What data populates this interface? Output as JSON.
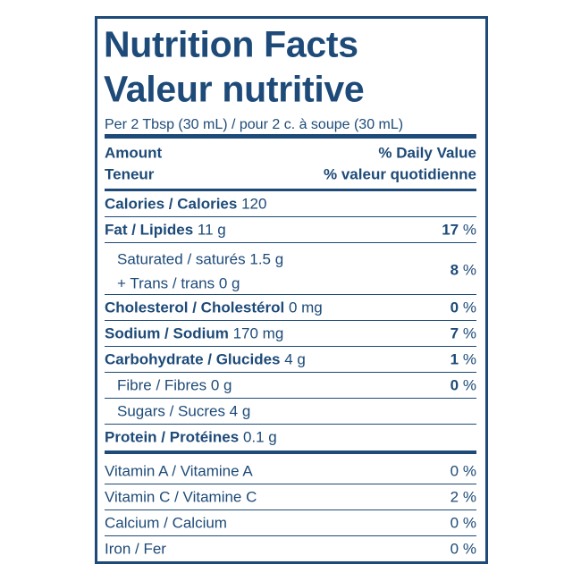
{
  "header": {
    "title_en": "Nutrition Facts",
    "title_fr": "Valeur nutritive",
    "serving": "Per 2 Tbsp (30 mL) / pour 2 c. à soupe (30 mL)"
  },
  "columns": {
    "amount_en": "Amount",
    "amount_fr": "Teneur",
    "dv_en": "% Daily Value",
    "dv_fr": "% valeur quotidienne"
  },
  "nutrients": [
    {
      "label": "Calories / Calories",
      "amount": "120"
    },
    {
      "label": "Fat / Lipides",
      "amount": "11 g",
      "dv": "17",
      "unit": "%",
      "subs": [
        {
          "label": "Saturated / saturés 1.5 g",
          "sub": "+ Trans / trans 0 g",
          "dv": "8",
          "unit": "%"
        }
      ]
    },
    {
      "label": "Cholesterol / Cholestérol",
      "amount": "0 mg",
      "dv": "0",
      "unit": "%"
    },
    {
      "label": "Sodium / Sodium",
      "amount": "170 mg",
      "dv": "7",
      "unit": "%"
    },
    {
      "label": "Carbohydrate / Glucides",
      "amount": "4 g",
      "dv": "1",
      "unit": "%",
      "subs": [
        {
          "label": "Fibre / Fibres 0 g",
          "dv": "0",
          "unit": "%"
        },
        {
          "label": "Sugars / Sucres 4 g"
        }
      ]
    },
    {
      "label": "Protein / Protéines",
      "amount": "0.1 g"
    }
  ],
  "vitamins": [
    {
      "label": "Vitamin A / Vitamine A",
      "dv": "0",
      "unit": "%"
    },
    {
      "label": "Vitamin C / Vitamine C",
      "dv": "2",
      "unit": "%"
    },
    {
      "label": "Calcium / Calcium",
      "dv": "0",
      "unit": "%"
    },
    {
      "label": "Iron / Fer",
      "dv": "0",
      "unit": "%"
    }
  ]
}
